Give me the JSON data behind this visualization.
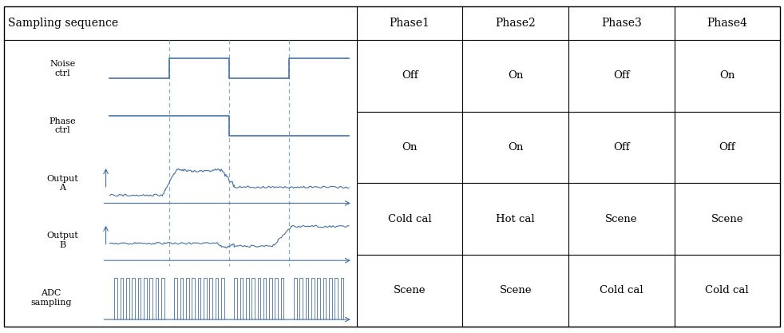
{
  "title": "Sampling sequence",
  "phases": [
    "Phase1",
    "Phase2",
    "Phase3",
    "Phase4"
  ],
  "rows": [
    {
      "label": "Noise\nctrl",
      "values": [
        "Off",
        "On",
        "Off",
        "On"
      ]
    },
    {
      "label": "Phase\nctrl",
      "values": [
        "On",
        "On",
        "Off",
        "Off"
      ]
    },
    {
      "label": "Output\nA",
      "values": [
        "Cold cal",
        "Hot cal",
        "Scene",
        "Scene"
      ]
    },
    {
      "label": "Output\nB",
      "values": [
        "Scene",
        "Scene",
        "Cold cal",
        "Cold cal"
      ]
    }
  ],
  "signal_color": "#4472a8",
  "dashed_color": "#7fafd0",
  "grid_color": "#000000",
  "text_color": "#000000",
  "bg_color": "#ffffff",
  "adc_label": "ADC\nsampling",
  "phase_boundaries": [
    0.25,
    0.5,
    0.75
  ]
}
